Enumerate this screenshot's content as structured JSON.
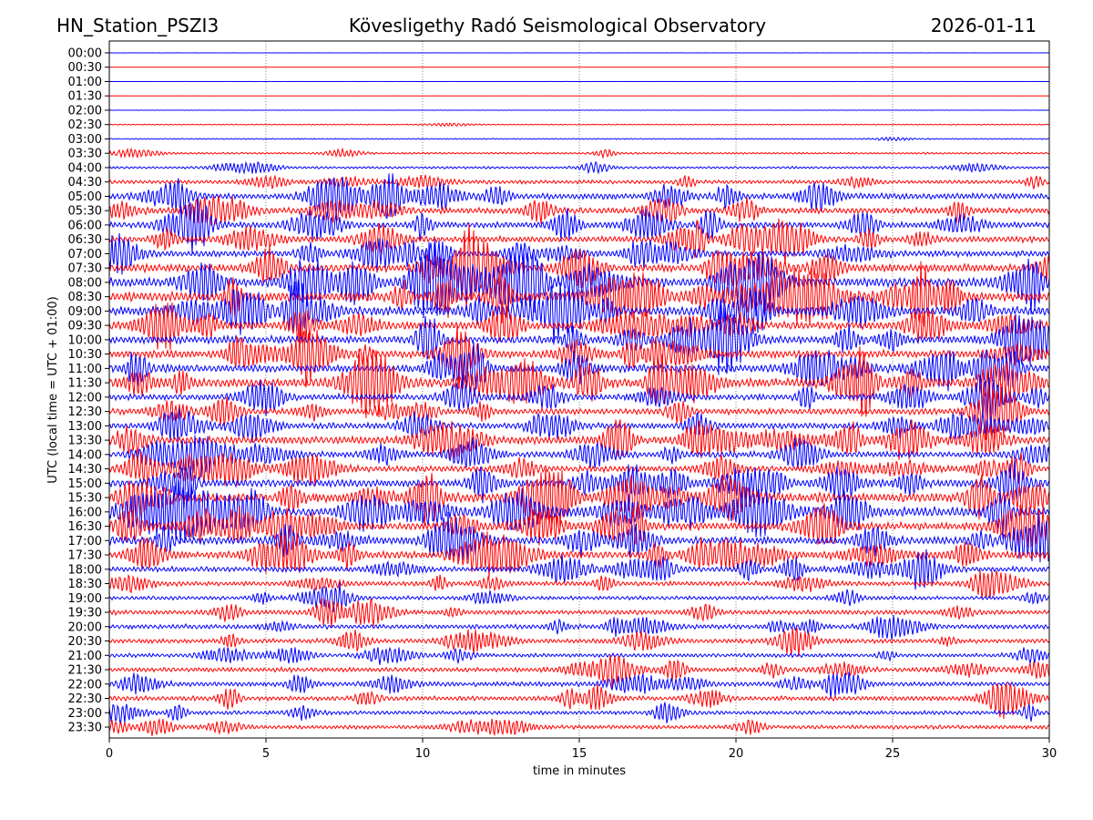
{
  "chart_data": {
    "type": "line",
    "title_left": "HN_Station_PSZI3",
    "title": "Kövesligethy Radó Seismological Observatory",
    "title_right": "2026-01-11",
    "xlabel": "time in minutes",
    "ylabel": "UTC (local time = UTC + 01:00)",
    "xlim": [
      0,
      30
    ],
    "xticks": [
      "0",
      "5",
      "10",
      "15",
      "20",
      "25",
      "30"
    ],
    "xtick_values": [
      0,
      5,
      10,
      15,
      20,
      25,
      30
    ],
    "grid": "vertical dotted at x ticks",
    "colors": [
      "#0000ff",
      "#ff0000"
    ],
    "rows": [
      "00:00",
      "00:30",
      "01:00",
      "01:30",
      "02:00",
      "02:30",
      "03:00",
      "03:30",
      "04:00",
      "04:30",
      "05:00",
      "05:30",
      "06:00",
      "06:30",
      "07:00",
      "07:30",
      "08:00",
      "08:30",
      "09:00",
      "09:30",
      "10:00",
      "10:30",
      "11:00",
      "11:30",
      "12:00",
      "12:30",
      "13:00",
      "13:30",
      "14:00",
      "14:30",
      "15:00",
      "15:30",
      "16:00",
      "16:30",
      "17:00",
      "17:30",
      "18:00",
      "18:30",
      "19:00",
      "19:30",
      "20:00",
      "20:30",
      "21:00",
      "21:30",
      "22:00",
      "22:30",
      "23:00",
      "23:30"
    ],
    "relative_amplitude": [
      0.1,
      0.1,
      0.1,
      0.15,
      0.15,
      0.6,
      0.7,
      1.2,
      1.5,
      2.5,
      4,
      4,
      4,
      4,
      4,
      5,
      6,
      6,
      6,
      5,
      5,
      5,
      5,
      6,
      4,
      4,
      4,
      5,
      4,
      4,
      5,
      6,
      6,
      5,
      5,
      5,
      3.5,
      3,
      2.5,
      3,
      3,
      3,
      2.5,
      3,
      3,
      3,
      2.5,
      2.5
    ]
  }
}
